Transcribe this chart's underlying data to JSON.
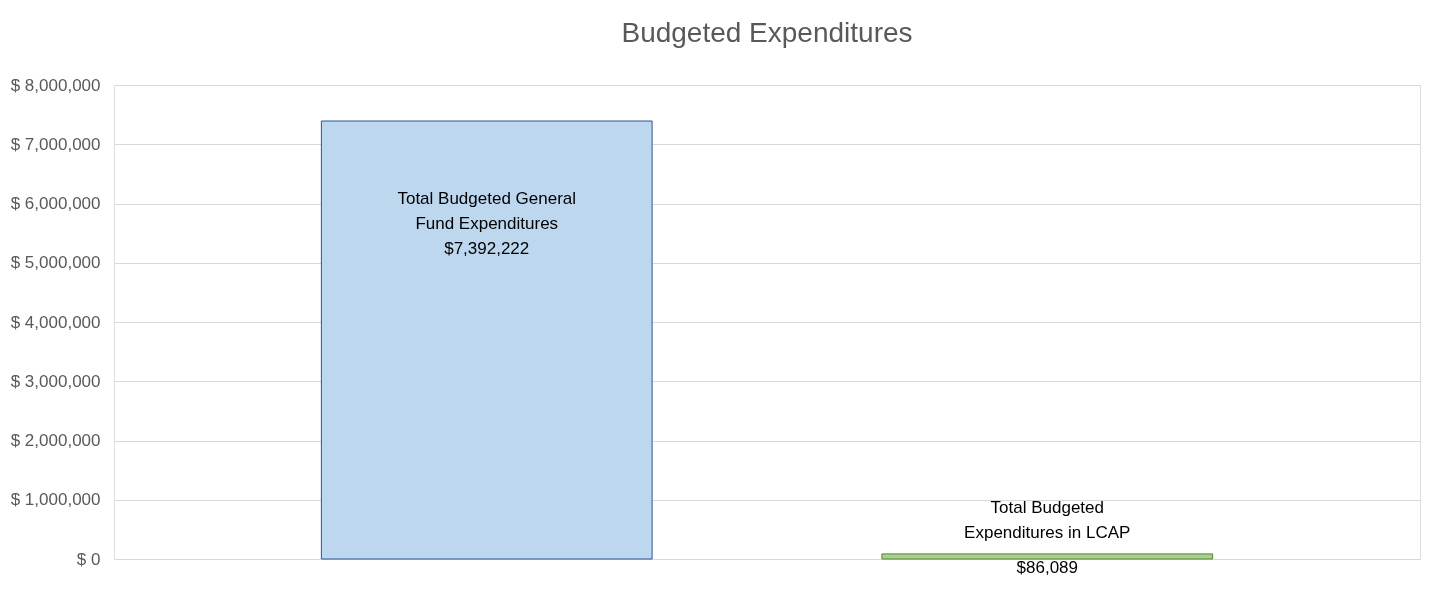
{
  "chart_data": {
    "type": "bar",
    "title": "Budgeted Expenditures",
    "categories": [
      "Total Budgeted General Fund Expenditures",
      "Total Budgeted Expenditures in LCAP"
    ],
    "values": [
      7392222,
      86089
    ],
    "colors": [
      "#bdd7ee",
      "#a9d18e"
    ],
    "value_labels": [
      "$7,392,222",
      "$86,089"
    ],
    "ylim": [
      0,
      8000000
    ],
    "yticks": [
      {
        "value": 0,
        "label": "$ 0"
      },
      {
        "value": 1000000,
        "label": "$ 1,000,000"
      },
      {
        "value": 2000000,
        "label": "$ 2,000,000"
      },
      {
        "value": 3000000,
        "label": "$ 3,000,000"
      },
      {
        "value": 4000000,
        "label": "$ 4,000,000"
      },
      {
        "value": 5000000,
        "label": "$ 5,000,000"
      },
      {
        "value": 6000000,
        "label": "$ 6,000,000"
      },
      {
        "value": 7000000,
        "label": "$ 7,000,000"
      },
      {
        "value": 8000000,
        "label": "$ 8,000,000"
      }
    ],
    "grid": "y"
  }
}
